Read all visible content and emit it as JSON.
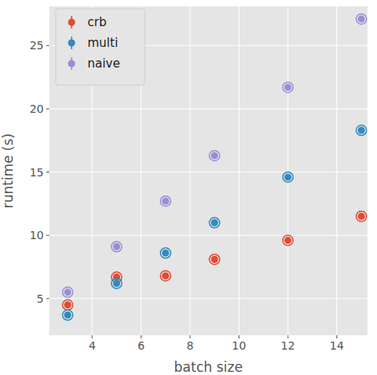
{
  "chart_data": {
    "type": "scatter",
    "x_label": "batch size",
    "y_label": "runtime (s)",
    "x": [
      3,
      5,
      7,
      9,
      12,
      15
    ],
    "series": [
      {
        "name": "crb",
        "color": "#E24A33",
        "marker": "o",
        "values": [
          4.5,
          6.7,
          6.8,
          8.1,
          9.6,
          11.5
        ],
        "errors": [
          0.05,
          0.05,
          0.05,
          0.05,
          0.05,
          0.05
        ]
      },
      {
        "name": "multi",
        "color": "#348ABD",
        "marker": "o",
        "values": [
          3.7,
          6.2,
          8.6,
          11.0,
          14.6,
          18.3
        ],
        "errors": [
          0.05,
          0.05,
          0.05,
          0.05,
          0.05,
          0.05
        ]
      },
      {
        "name": "naive",
        "color": "#988ED5",
        "marker": "o",
        "values": [
          5.5,
          9.1,
          12.7,
          16.3,
          21.7,
          27.1
        ],
        "errors": [
          0.05,
          0.05,
          0.05,
          0.05,
          0.05,
          0.05
        ]
      }
    ],
    "xlim": [
      2.25,
      15.25
    ],
    "xticks": [
      4,
      6,
      8,
      10,
      12,
      14
    ],
    "ylim": [
      2.1,
      28.1
    ],
    "yticks": [
      5,
      10,
      15,
      20,
      25
    ],
    "grid": true,
    "legend": "upper left"
  }
}
